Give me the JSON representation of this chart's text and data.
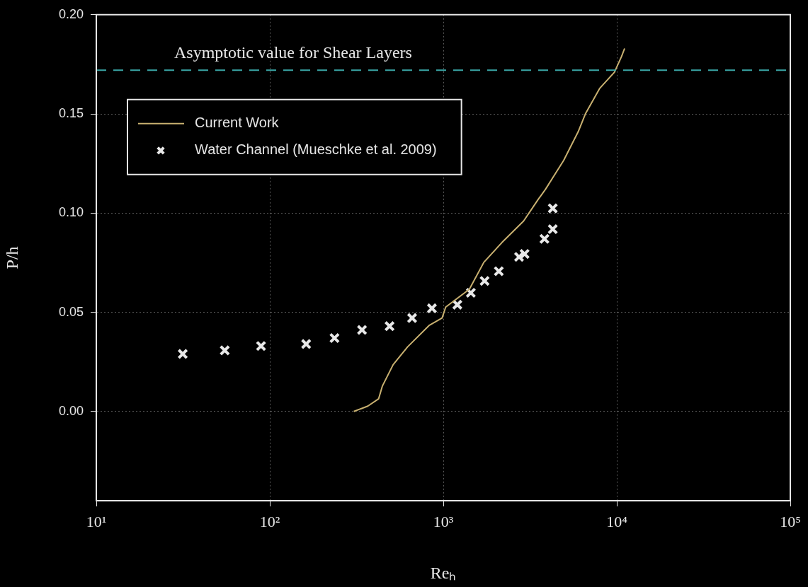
{
  "chart_data": {
    "type": "line",
    "xlabel": "Reₕ",
    "ylabel": "P/h",
    "log": "x",
    "grid": true,
    "legend": "top left",
    "xlim": [
      10,
      100000
    ],
    "xticks": [
      {
        "value": 10,
        "label": "10¹"
      },
      {
        "value": 100,
        "label": "10²"
      },
      {
        "value": 1000,
        "label": "10³"
      },
      {
        "value": 10000,
        "label": "10⁴"
      },
      {
        "value": 100000,
        "label": "10⁵"
      }
    ],
    "ylim": [
      -0.045,
      0.2
    ],
    "yticks": [
      {
        "value": 0,
        "label": "0.00"
      },
      {
        "value": 0.05,
        "label": "0.05"
      },
      {
        "value": 0.1,
        "label": "0.10"
      },
      {
        "value": 0.15,
        "label": "0.15"
      },
      {
        "value": 0.2,
        "label": "0.20"
      }
    ],
    "ref_lines": [
      {
        "axis": "y",
        "value": 0.172,
        "label": "Asymptotic value for Shear Layers",
        "color": "#3aa6a6",
        "line_style": "dashed"
      }
    ],
    "series": [
      {
        "name": "Current Work",
        "type": "line",
        "color": "#c8b070",
        "marker": "none",
        "line_style": "solid",
        "x": [
          305,
          367,
          424,
          445,
          514,
          623,
          832,
          984,
          1032,
          1413,
          1713,
          2179,
          2904,
          3530,
          3882,
          4943,
          5990,
          6590,
          7990,
          9690,
          10660,
          11090
        ],
        "values": [
          0,
          0.0027,
          0.0064,
          0.0127,
          0.0236,
          0.0326,
          0.0435,
          0.0471,
          0.0526,
          0.0616,
          0.0752,
          0.0852,
          0.096,
          0.107,
          0.112,
          0.1266,
          0.141,
          0.15,
          0.163,
          0.171,
          0.179,
          0.183
        ]
      },
      {
        "name": "Water Channel (Mueschke et al. 2009)",
        "type": "scatter",
        "color": "#e8e8e8",
        "marker": "cross",
        "x": [
          31.5,
          55,
          89,
          162,
          236,
          340,
          490,
          661,
          860,
          1205,
          1441,
          1730,
          2089,
          2733,
          2941,
          3828,
          4276,
          4276
        ],
        "values": [
          0.029,
          0.0308,
          0.033,
          0.034,
          0.037,
          0.0411,
          0.043,
          0.0471,
          0.052,
          0.0538,
          0.0598,
          0.0658,
          0.0707,
          0.0779,
          0.0794,
          0.087,
          0.1024,
          0.0919
        ]
      }
    ]
  }
}
